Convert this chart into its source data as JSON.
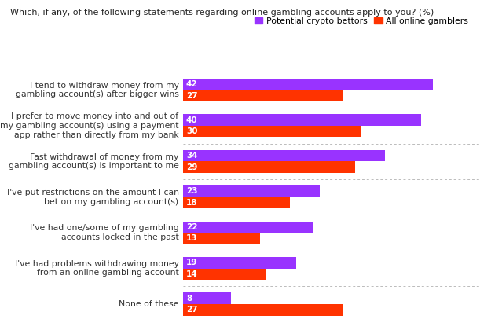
{
  "title": "Which, if any, of the following statements regarding online gambling accounts apply to you? (%)",
  "categories": [
    "I tend to withdraw money from my\ngambling account(s) after bigger wins",
    "I prefer to move money into and out of\nmy gambling account(s) using a payment\napp rather than directly from my bank",
    "Fast withdrawal of money from my\ngambling account(s) is important to me",
    "I've put restrictions on the amount I can\nbet on my gambling account(s)",
    "I've had one/some of my gambling\naccounts locked in the past",
    "I've had problems withdrawing money\nfrom an online gambling account",
    "None of these"
  ],
  "crypto_values": [
    42,
    40,
    34,
    23,
    22,
    19,
    8
  ],
  "fiat_values": [
    27,
    30,
    29,
    18,
    13,
    14,
    27
  ],
  "crypto_color": "#9933ff",
  "fiat_color": "#ff3300",
  "bar_height": 0.32,
  "xlim": [
    0,
    50
  ],
  "legend_labels": [
    "Potential crypto bettors",
    "All online gamblers"
  ],
  "title_fontsize": 8.0,
  "label_fontsize": 7.8,
  "value_fontsize": 7.5
}
